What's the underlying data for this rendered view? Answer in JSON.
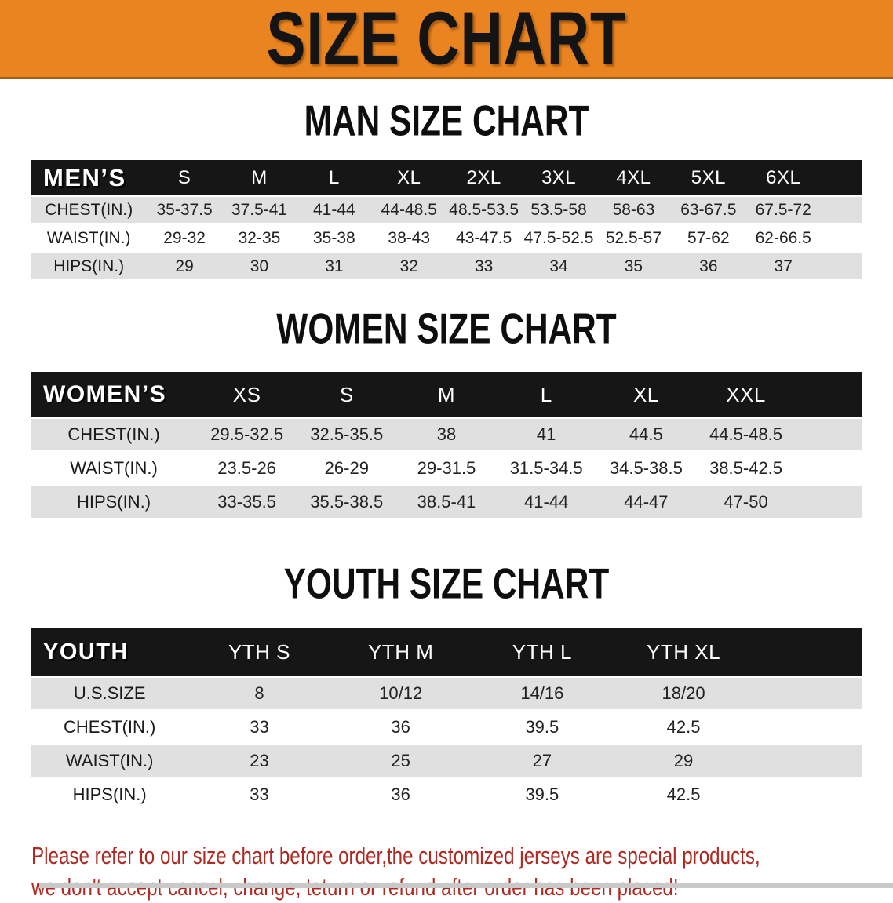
{
  "banner": {
    "title": "SIZE CHART"
  },
  "colors": {
    "banner_bg": "#E98420",
    "banner_edge": "#A55E12",
    "header_bar": "#161616",
    "row_alt": "#E0E0E0",
    "footer_text": "#AD2B23"
  },
  "chart_data": [
    {
      "type": "table",
      "title": "MAN SIZE CHART",
      "corner": "MEN’S",
      "columns": [
        "S",
        "M",
        "L",
        "XL",
        "2XL",
        "3XL",
        "4XL",
        "5XL",
        "6XL"
      ],
      "rows": [
        {
          "label": "CHEST(IN.)",
          "values": [
            "35-37.5",
            "37.5-41",
            "41-44",
            "44-48.5",
            "48.5-53.5",
            "53.5-58",
            "58-63",
            "63-67.5",
            "67.5-72"
          ]
        },
        {
          "label": "WAIST(IN.)",
          "values": [
            "29-32",
            "32-35",
            "35-38",
            "38-43",
            "43-47.5",
            "47.5-52.5",
            "52.5-57",
            "57-62",
            "62-66.5"
          ]
        },
        {
          "label": "HIPS(IN.)",
          "values": [
            "29",
            "30",
            "31",
            "32",
            "33",
            "34",
            "35",
            "36",
            "37"
          ]
        }
      ]
    },
    {
      "type": "table",
      "title": "WOMEN SIZE CHART",
      "corner": "WOMEN’S",
      "columns": [
        "XS",
        "S",
        "M",
        "L",
        "XL",
        "XXL"
      ],
      "rows": [
        {
          "label": "CHEST(IN.)",
          "values": [
            "29.5-32.5",
            "32.5-35.5",
            "38",
            "41",
            "44.5",
            "44.5-48.5"
          ]
        },
        {
          "label": "WAIST(IN.)",
          "values": [
            "23.5-26",
            "26-29",
            "29-31.5",
            "31.5-34.5",
            "34.5-38.5",
            "38.5-42.5"
          ]
        },
        {
          "label": "HIPS(IN.)",
          "values": [
            "33-35.5",
            "35.5-38.5",
            "38.5-41",
            "41-44",
            "44-47",
            "47-50"
          ]
        }
      ]
    },
    {
      "type": "table",
      "title": "YOUTH SIZE CHART",
      "corner": "YOUTH",
      "columns": [
        "YTH S",
        "YTH M",
        "YTH L",
        "YTH XL"
      ],
      "rows": [
        {
          "label": "U.S.SIZE",
          "values": [
            "8",
            "10/12",
            "14/16",
            "18/20"
          ]
        },
        {
          "label": "CHEST(IN.)",
          "values": [
            "33",
            "36",
            "39.5",
            "42.5"
          ]
        },
        {
          "label": "WAIST(IN.)",
          "values": [
            "23",
            "25",
            "27",
            "29"
          ]
        },
        {
          "label": "HIPS(IN.)",
          "values": [
            "33",
            "36",
            "39.5",
            "42.5"
          ]
        }
      ]
    }
  ],
  "footer": {
    "line1": "Please refer to our size chart before order,the customized jerseys are special products,",
    "line2": "we don't accept cancel, change, teturn or refund after order has been placed!"
  }
}
